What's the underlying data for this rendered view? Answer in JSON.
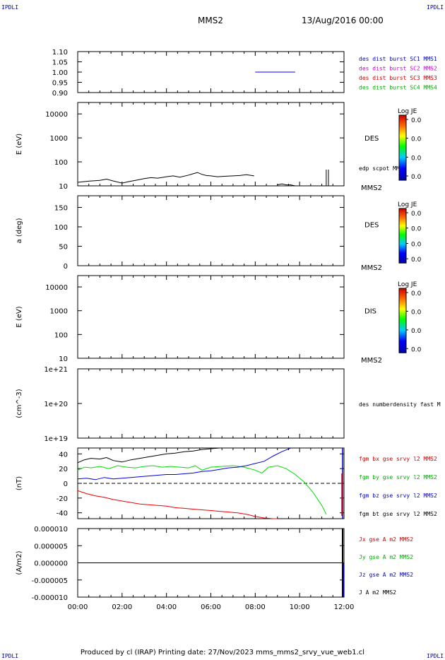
{
  "header": {
    "corner_label": "IPDLI",
    "spacecraft": "MMS2",
    "date_time": "13/Aug/2016 00:00"
  },
  "footer": {
    "text": "Produced by cl (IRAP)   Printing date: 27/Nov/2023   mms_mms2_srvy_vue_web1.cl"
  },
  "colors": {
    "black": "#000000",
    "blue": "#0000ff",
    "magenta": "#cc00cc",
    "red": "#ff0000",
    "green": "#00cc00"
  },
  "chart_data": [
    {
      "id": "p1",
      "type": "line",
      "ylabel": "",
      "y_ticks": [
        "1.10",
        "1.05",
        "1.00",
        "0.95",
        "0.90"
      ],
      "ylim": [
        0.9,
        1.1
      ],
      "xlim_hours": [
        0,
        12
      ],
      "series": [
        {
          "name": "des dist burst SC1 MMS1",
          "color": "#0000ff",
          "x": [
            8.0,
            9.8
          ],
          "y": [
            1.0,
            1.0
          ]
        }
      ],
      "legend": [
        {
          "text": "des dist burst SC1 MMS1",
          "color": "#0000cc"
        },
        {
          "text": "des dist burst SC2 MMS2",
          "color": "#cc00cc"
        },
        {
          "text": "des dist burst SC3 MMS3",
          "color": "#cc0000"
        },
        {
          "text": "des dist burst SC4 MMS4",
          "color": "#00aa00"
        }
      ]
    },
    {
      "id": "p2",
      "type": "line",
      "ylabel": "E (eV)",
      "log_y": true,
      "y_ticks": [
        "10000",
        "1000",
        "100",
        "10"
      ],
      "ylim": [
        10,
        30000
      ],
      "side_label": "DES",
      "legend": [
        {
          "text": "edp scpot MMS2",
          "color": "#000000"
        }
      ],
      "bottom_label": "MMS2",
      "colorbar": {
        "title": "Log JE",
        "ticks": [
          "0.0",
          "0.0",
          "0.0",
          "0.0"
        ]
      },
      "series": [
        {
          "name": "edp scpot MMS2",
          "color": "#000000",
          "x": [
            0.0,
            0.3,
            0.6,
            1.0,
            1.3,
            1.6,
            2.0,
            2.3,
            2.6,
            3.0,
            3.3,
            3.6,
            4.0,
            4.3,
            4.6,
            5.0,
            5.2,
            5.4,
            5.6,
            5.8,
            6.0,
            6.3,
            6.6,
            7.0,
            7.3,
            7.6,
            7.95
          ],
          "y": [
            14,
            15,
            16,
            17,
            19,
            16,
            13,
            15,
            17,
            20,
            22,
            21,
            24,
            26,
            23,
            28,
            32,
            36,
            30,
            27,
            26,
            24,
            25,
            26,
            27,
            29,
            26
          ]
        },
        {
          "name": "edp scpot MMS2 late",
          "color": "#000000",
          "x": [
            9.0,
            9.2,
            9.4,
            9.6,
            9.8
          ],
          "y": [
            11,
            12,
            11,
            11,
            10
          ]
        }
      ]
    },
    {
      "id": "p3",
      "type": "heatmap",
      "ylabel": "a (deg)",
      "y_ticks": [
        "150",
        "100",
        "50",
        "0"
      ],
      "ylim": [
        0,
        180
      ],
      "side_label": "DES",
      "bottom_label": "MMS2",
      "colorbar": {
        "title": "Log JE",
        "ticks": [
          "0.0",
          "0.0",
          "0.0",
          "0.0"
        ]
      }
    },
    {
      "id": "p4",
      "type": "heatmap",
      "ylabel": "E (eV)",
      "log_y": true,
      "y_ticks": [
        "10000",
        "1000",
        "100",
        "10"
      ],
      "ylim": [
        10,
        30000
      ],
      "side_label": "DIS",
      "bottom_label": "MMS2",
      "colorbar": {
        "title": "Log JE",
        "ticks": [
          "0.0",
          "0.0",
          "0.0",
          "0.0"
        ]
      }
    },
    {
      "id": "p5",
      "type": "line",
      "ylabel": "(cm^-3)",
      "log_y": true,
      "y_ticks": [
        "1e+21",
        "1e+20",
        "1e+19"
      ],
      "ylim": [
        1e+19,
        1e+21
      ],
      "legend": [
        {
          "text": "des numberdensity fast M",
          "color": "#000000"
        }
      ]
    },
    {
      "id": "p6",
      "type": "line",
      "ylabel": "(nT)",
      "y_ticks": [
        "40",
        "20",
        "0",
        "-20",
        "-40"
      ],
      "ylim": [
        -48,
        48
      ],
      "zero_line": true,
      "legend": [
        {
          "text": "fgm bx gse srvy l2 MMS2",
          "color": "#cc0000"
        },
        {
          "text": "fgm by gse srvy l2 MMS2",
          "color": "#00aa00"
        },
        {
          "text": "fgm bz gse srvy l2 MMS2",
          "color": "#0000cc"
        },
        {
          "text": "fgm bt gse srvy l2 MMS2",
          "color": "#000000"
        }
      ],
      "series": [
        {
          "name": "fgm bt gse srvy l2 MMS2",
          "color": "#000000",
          "x": [
            0.0,
            0.3,
            0.6,
            1.0,
            1.3,
            1.6,
            2.0,
            2.4,
            2.8,
            3.2,
            3.6,
            4.0,
            4.4,
            4.8,
            5.2,
            5.6,
            6.0,
            6.4,
            6.8,
            7.0
          ],
          "y": [
            28,
            32,
            34,
            33,
            35,
            31,
            29,
            32,
            34,
            36,
            38,
            40,
            41,
            43,
            44,
            46,
            47,
            48,
            48,
            48
          ]
        },
        {
          "name": "fgm by gse srvy l2 MMS2",
          "color": "#00dd00",
          "x": [
            0.0,
            0.3,
            0.6,
            1.0,
            1.4,
            1.8,
            2.2,
            2.6,
            3.0,
            3.4,
            3.8,
            4.2,
            4.6,
            5.0,
            5.3,
            5.6,
            6.0,
            6.5,
            7.0,
            7.5,
            8.0,
            8.3,
            8.6,
            9.0,
            9.4,
            9.8,
            10.2,
            10.6,
            11.0,
            11.2
          ],
          "y": [
            18,
            22,
            21,
            23,
            20,
            24,
            22,
            21,
            23,
            24,
            22,
            23,
            22,
            21,
            24,
            18,
            22,
            23,
            24,
            22,
            18,
            14,
            22,
            24,
            20,
            12,
            2,
            -12,
            -30,
            -42
          ]
        },
        {
          "name": "fgm bz gse srvy l2 MMS2",
          "color": "#0000dd",
          "x": [
            0.0,
            0.4,
            0.8,
            1.2,
            1.6,
            2.0,
            2.4,
            2.8,
            3.2,
            3.6,
            4.0,
            4.4,
            4.8,
            5.2,
            5.6,
            6.0,
            6.4,
            6.8,
            7.2,
            7.6,
            8.0,
            8.4,
            8.8,
            9.2,
            9.6
          ],
          "y": [
            6,
            7,
            5,
            8,
            6,
            7,
            8,
            9,
            10,
            11,
            12,
            12,
            13,
            14,
            16,
            17,
            19,
            21,
            22,
            24,
            27,
            30,
            37,
            43,
            48
          ]
        },
        {
          "name": "fgm bx gse srvy l2 MMS2",
          "color": "#ee0000",
          "x": [
            0.0,
            0.4,
            0.8,
            1.2,
            1.6,
            2.0,
            2.4,
            2.8,
            3.2,
            3.6,
            4.0,
            4.4,
            4.8,
            5.2,
            5.6,
            6.0,
            6.4,
            6.8,
            7.2,
            7.6,
            8.0,
            8.4,
            8.8,
            9.0
          ],
          "y": [
            -10,
            -14,
            -17,
            -19,
            -22,
            -24,
            -26,
            -28,
            -29,
            -30,
            -31,
            -33,
            -34,
            -35,
            -36,
            -37,
            -38,
            -39,
            -40,
            -42,
            -45,
            -47,
            -48,
            -48
          ]
        }
      ]
    },
    {
      "id": "p7",
      "type": "line",
      "ylabel": "(A/m2)",
      "y_ticks": [
        "0.000010",
        "0.000005",
        "0.000000",
        "-0.000005",
        "-0.000010"
      ],
      "ylim": [
        -1e-05,
        1e-05
      ],
      "legend": [
        {
          "text": "Jx gse A m2 MMS2",
          "color": "#cc0000"
        },
        {
          "text": "Jy gse A m2 MMS2",
          "color": "#00aa00"
        },
        {
          "text": "Jz gse A m2 MMS2",
          "color": "#0000cc"
        },
        {
          "text": "J A m2 MMS2",
          "color": "#000000"
        }
      ],
      "series": [
        {
          "name": "J A m2 MMS2",
          "color": "#000000",
          "x": [
            0.0,
            12.0
          ],
          "y": [
            0.0,
            0.0
          ]
        }
      ]
    }
  ],
  "x_axis": {
    "tick_labels": [
      "00:00",
      "02:00",
      "04:00",
      "06:00",
      "08:00",
      "10:00",
      "12:00"
    ],
    "tick_hours": [
      0,
      2,
      4,
      6,
      8,
      10,
      12
    ]
  }
}
